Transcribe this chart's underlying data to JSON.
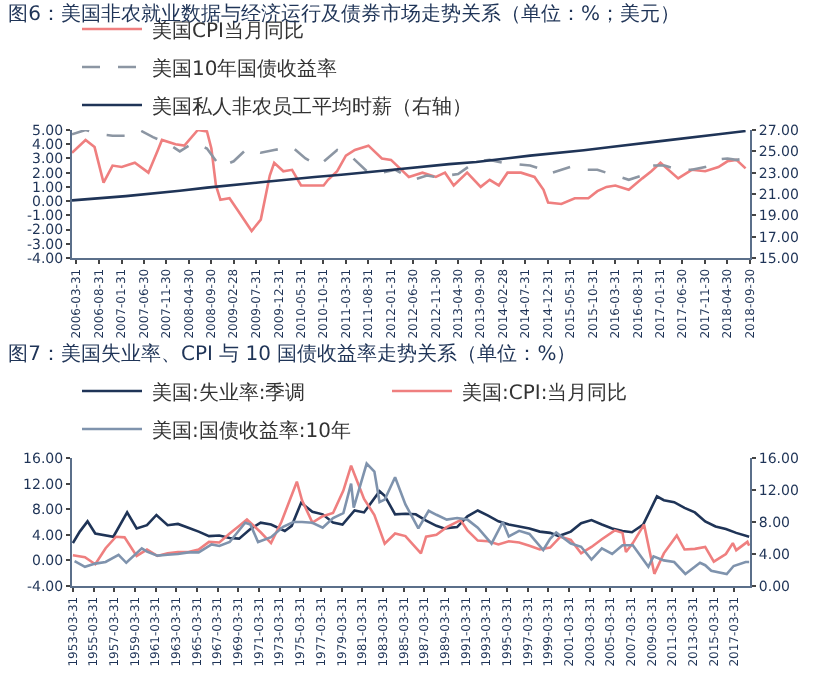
{
  "chart_data": [
    {
      "type": "line",
      "title": "图6：美国非农就业数据与经济运行及债券市场走势关系（单位：%；美元）",
      "legend": "top",
      "xlim": [
        "2006-03-01",
        "2018-10-01"
      ],
      "xticks": [
        "2006-03-31",
        "2006-08-31",
        "2007-01-31",
        "2007-06-30",
        "2007-11-30",
        "2008-04-30",
        "2008-09-30",
        "2009-02-28",
        "2009-07-31",
        "2009-12-31",
        "2010-05-31",
        "2010-10-31",
        "2011-03-31",
        "2011-08-31",
        "2012-01-31",
        "2012-06-30",
        "2012-11-30",
        "2013-04-30",
        "2013-09-30",
        "2014-02-28",
        "2014-07-31",
        "2014-12-31",
        "2015-05-31",
        "2015-10-31",
        "2016-03-31",
        "2016-08-31",
        "2017-01-31",
        "2017-06-30",
        "2017-11-30",
        "2018-04-30",
        "2018-09-30"
      ],
      "ylim": [
        -4,
        5
      ],
      "yticks": [
        {
          "value": -4,
          "label": "-4.00"
        },
        {
          "value": -3,
          "label": "-3.00"
        },
        {
          "value": -2,
          "label": "-2.00"
        },
        {
          "value": -1,
          "label": "-1.00"
        },
        {
          "value": 0,
          "label": "0.00"
        },
        {
          "value": 1,
          "label": "1.00"
        },
        {
          "value": 2,
          "label": "2.00"
        },
        {
          "value": 3,
          "label": "3.00"
        },
        {
          "value": 4,
          "label": "4.00"
        },
        {
          "value": 5,
          "label": "5.00"
        }
      ],
      "y2lim": [
        15,
        27
      ],
      "y2ticks": [
        {
          "value": 15,
          "label": "15.00"
        },
        {
          "value": 17,
          "label": "17.00"
        },
        {
          "value": 19,
          "label": "19.00"
        },
        {
          "value": 21,
          "label": "21.00"
        },
        {
          "value": 23,
          "label": "23.00"
        },
        {
          "value": 25,
          "label": "25.00"
        },
        {
          "value": 27,
          "label": "27.00"
        }
      ],
      "series": [
        {
          "name": "美国CPI当月同比",
          "color": "#ef7f7f",
          "line_style": "solid",
          "x": [
            "2006-03",
            "2006-06",
            "2006-08",
            "2006-10",
            "2006-12",
            "2007-02",
            "2007-05",
            "2007-08",
            "2007-10",
            "2007-11",
            "2008-02",
            "2008-04",
            "2008-07",
            "2008-09",
            "2008-10",
            "2008-11",
            "2008-12",
            "2009-02",
            "2009-04",
            "2009-07",
            "2009-09",
            "2009-11",
            "2009-12",
            "2010-02",
            "2010-04",
            "2010-06",
            "2010-09",
            "2010-11",
            "2010-12",
            "2011-02",
            "2011-04",
            "2011-06",
            "2011-09",
            "2011-12",
            "2012-02",
            "2012-04",
            "2012-06",
            "2012-09",
            "2012-12",
            "2013-02",
            "2013-04",
            "2013-07",
            "2013-10",
            "2013-12",
            "2014-02",
            "2014-04",
            "2014-07",
            "2014-10",
            "2014-12",
            "2015-01",
            "2015-04",
            "2015-07",
            "2015-10",
            "2015-12",
            "2016-02",
            "2016-04",
            "2016-07",
            "2016-10",
            "2016-12",
            "2017-02",
            "2017-06",
            "2017-09",
            "2017-12",
            "2018-03",
            "2018-05",
            "2018-07",
            "2018-09"
          ],
          "values": [
            3.4,
            4.3,
            3.8,
            1.3,
            2.5,
            2.4,
            2.7,
            2.0,
            3.5,
            4.3,
            4.0,
            3.9,
            5.0,
            4.9,
            3.7,
            1.1,
            0.1,
            0.2,
            -0.7,
            -2.1,
            -1.3,
            1.8,
            2.7,
            2.1,
            2.2,
            1.1,
            1.1,
            1.1,
            1.5,
            2.1,
            3.2,
            3.6,
            3.9,
            3.0,
            2.9,
            2.3,
            1.7,
            2.0,
            1.7,
            2.0,
            1.1,
            2.0,
            1.0,
            1.5,
            1.1,
            2.0,
            2.0,
            1.7,
            0.8,
            -0.1,
            -0.2,
            0.2,
            0.2,
            0.7,
            1.0,
            1.1,
            0.8,
            1.6,
            2.1,
            2.7,
            1.6,
            2.2,
            2.1,
            2.4,
            2.8,
            2.9,
            2.3
          ]
        },
        {
          "name": "美国10年国债收益率",
          "color": "#8c96a3",
          "line_style": "dashed",
          "x": [
            "2006-03",
            "2006-06",
            "2006-09",
            "2006-12",
            "2007-03",
            "2007-06",
            "2007-09",
            "2007-12",
            "2008-03",
            "2008-06",
            "2008-09",
            "2008-12",
            "2009-03",
            "2009-06",
            "2009-09",
            "2009-12",
            "2010-04",
            "2010-07",
            "2010-10",
            "2011-02",
            "2011-05",
            "2011-09",
            "2011-12",
            "2012-03",
            "2012-07",
            "2012-10",
            "2012-12",
            "2013-05",
            "2013-09",
            "2013-12",
            "2014-03",
            "2014-06",
            "2014-09",
            "2014-12",
            "2015-01",
            "2015-06",
            "2015-09",
            "2015-12",
            "2016-03",
            "2016-07",
            "2016-10",
            "2016-12",
            "2017-03",
            "2017-06",
            "2017-09",
            "2017-12",
            "2018-02",
            "2018-05",
            "2018-07",
            "2018-09"
          ],
          "values": [
            4.7,
            5.0,
            4.7,
            4.6,
            4.6,
            5.0,
            4.5,
            4.1,
            3.5,
            4.1,
            3.7,
            2.4,
            2.8,
            3.7,
            3.4,
            3.6,
            3.8,
            3.0,
            2.5,
            3.6,
            3.2,
            2.0,
            2.0,
            2.2,
            1.5,
            1.8,
            1.7,
            1.9,
            2.8,
            2.9,
            2.7,
            2.6,
            2.5,
            2.2,
            1.9,
            2.4,
            2.2,
            2.2,
            1.9,
            1.5,
            1.8,
            2.5,
            2.5,
            2.2,
            2.2,
            2.4,
            2.9,
            3.0,
            2.9,
            3.0
          ]
        },
        {
          "name": "美国私人非农员工平均时薪（右轴）",
          "color": "#1f3457",
          "line_style": "solid",
          "axis": "y2",
          "x": [
            "2006-03",
            "2007-03",
            "2008-03",
            "2008-09",
            "2009-09",
            "2010-09",
            "2011-03",
            "2012-03",
            "2013-03",
            "2013-09",
            "2014-09",
            "2015-09",
            "2016-03",
            "2017-03",
            "2018-03",
            "2018-09"
          ],
          "values": [
            20.4,
            20.8,
            21.3,
            21.6,
            22.1,
            22.6,
            22.8,
            23.3,
            23.8,
            24.0,
            24.6,
            25.1,
            25.4,
            26.0,
            26.6,
            26.9
          ]
        }
      ]
    },
    {
      "type": "line",
      "title": "图7：美国失业率、CPI 与 10 国债收益率走势关系（单位：%）",
      "legend": "top",
      "xlim": [
        "1953-03-01",
        "2018-10-01"
      ],
      "xticks": [
        "1953-03-31",
        "1955-03-31",
        "1957-03-31",
        "1959-03-31",
        "1961-03-31",
        "1963-03-31",
        "1965-03-31",
        "1967-03-31",
        "1969-03-31",
        "1971-03-31",
        "1973-03-31",
        "1975-03-31",
        "1977-03-31",
        "1979-03-31",
        "1981-03-31",
        "1983-03-31",
        "1985-03-31",
        "1987-03-31",
        "1989-03-31",
        "1991-03-31",
        "1993-03-31",
        "1995-03-31",
        "1997-03-31",
        "1999-03-31",
        "2001-03-31",
        "2003-03-31",
        "2005-03-31",
        "2007-03-31",
        "2009-03-31",
        "2011-03-31",
        "2013-03-31",
        "2015-03-31",
        "2017-03-31"
      ],
      "ylim": [
        -4,
        16
      ],
      "yticks": [
        {
          "value": -4,
          "label": "-4.00"
        },
        {
          "value": 0,
          "label": "0.00"
        },
        {
          "value": 4,
          "label": "4.00"
        },
        {
          "value": 8,
          "label": "8.00"
        },
        {
          "value": 12,
          "label": "12.00"
        },
        {
          "value": 16,
          "label": "16.00"
        }
      ],
      "y2lim": [
        0,
        16
      ],
      "y2ticks": [
        {
          "value": 0,
          "label": "0.00"
        },
        {
          "value": 4,
          "label": "4.00"
        },
        {
          "value": 8,
          "label": "8.00"
        },
        {
          "value": 12,
          "label": "12.00"
        },
        {
          "value": 16,
          "label": "16.00"
        }
      ],
      "series": [
        {
          "name": "美国:失业率:季调",
          "color": "#1f3457",
          "line_style": "solid",
          "x": [
            "1953-04",
            "1953-12",
            "1954-09",
            "1955-06",
            "1957-03",
            "1958-07",
            "1959-06",
            "1960-06",
            "1961-05",
            "1962-06",
            "1963-06",
            "1964-06",
            "1965-06",
            "1966-06",
            "1967-06",
            "1968-06",
            "1969-05",
            "1970-06",
            "1971-06",
            "1972-06",
            "1973-10",
            "1974-06",
            "1975-05",
            "1976-06",
            "1977-06",
            "1978-06",
            "1979-05",
            "1980-07",
            "1981-06",
            "1982-12",
            "1983-06",
            "1984-06",
            "1985-06",
            "1986-06",
            "1987-06",
            "1988-06",
            "1989-03",
            "1990-06",
            "1991-06",
            "1992-06",
            "1993-06",
            "1994-06",
            "1995-06",
            "1996-06",
            "1997-06",
            "1998-06",
            "1999-06",
            "2000-04",
            "2001-06",
            "2002-06",
            "2003-06",
            "2004-06",
            "2005-06",
            "2006-06",
            "2007-05",
            "2008-06",
            "2009-10",
            "2010-06",
            "2011-06",
            "2012-06",
            "2013-06",
            "2014-06",
            "2015-06",
            "2016-06",
            "2017-06",
            "2018-09"
          ],
          "values": [
            2.7,
            4.5,
            6.1,
            4.2,
            3.7,
            7.5,
            5.0,
            5.5,
            7.1,
            5.5,
            5.7,
            5.1,
            4.5,
            3.8,
            3.9,
            3.5,
            3.4,
            4.9,
            5.9,
            5.6,
            4.6,
            5.4,
            9.0,
            7.6,
            7.2,
            5.9,
            5.6,
            7.8,
            7.5,
            10.8,
            10.1,
            7.2,
            7.3,
            7.2,
            6.2,
            5.4,
            5.0,
            5.2,
            6.9,
            7.8,
            7.0,
            6.1,
            5.6,
            5.3,
            5.0,
            4.5,
            4.3,
            3.8,
            4.5,
            5.8,
            6.3,
            5.6,
            5.0,
            4.6,
            4.4,
            5.6,
            10.0,
            9.4,
            9.1,
            8.2,
            7.5,
            6.1,
            5.3,
            4.9,
            4.3,
            3.7
          ]
        },
        {
          "name": "美国:CPI:当月同比",
          "color": "#ef7f7f",
          "line_style": "solid",
          "x": [
            "1953-04",
            "1954-06",
            "1955-06",
            "1956-06",
            "1957-06",
            "1958-04",
            "1959-06",
            "1960-06",
            "1961-06",
            "1962-06",
            "1963-06",
            "1964-06",
            "1965-06",
            "1966-06",
            "1967-06",
            "1968-06",
            "1969-06",
            "1970-02",
            "1971-06",
            "1972-06",
            "1973-06",
            "1974-12",
            "1975-06",
            "1976-06",
            "1977-06",
            "1978-06",
            "1979-06",
            "1980-03",
            "1981-06",
            "1982-06",
            "1983-06",
            "1984-06",
            "1985-06",
            "1986-12",
            "1987-06",
            "1988-06",
            "1989-06",
            "1990-10",
            "1991-06",
            "1992-06",
            "1993-06",
            "1994-06",
            "1995-06",
            "1996-06",
            "1997-06",
            "1998-06",
            "1999-06",
            "2000-06",
            "2001-06",
            "2002-06",
            "2003-06",
            "2004-06",
            "2005-09",
            "2006-06",
            "2006-10",
            "2007-06",
            "2008-07",
            "2009-07",
            "2010-06",
            "2011-09",
            "2012-06",
            "2013-06",
            "2014-06",
            "2015-04",
            "2016-06",
            "2017-02",
            "2017-06",
            "2018-07",
            "2018-09"
          ],
          "values": [
            0.8,
            0.5,
            -0.6,
            1.9,
            3.7,
            3.6,
            0.7,
            1.7,
            0.7,
            1.1,
            1.3,
            1.3,
            1.7,
            2.9,
            2.8,
            4.2,
            5.5,
            6.4,
            4.4,
            2.7,
            6.0,
            12.3,
            9.4,
            5.9,
            6.9,
            7.4,
            10.9,
            14.8,
            9.6,
            7.1,
            2.6,
            4.2,
            3.8,
            1.1,
            3.7,
            4.0,
            5.2,
            6.3,
            4.7,
            3.1,
            3.0,
            2.5,
            3.0,
            2.8,
            2.3,
            1.7,
            2.0,
            3.7,
            3.2,
            1.1,
            2.1,
            3.3,
            4.7,
            4.3,
            1.3,
            2.7,
            5.6,
            -2.1,
            1.1,
            3.9,
            1.7,
            1.8,
            2.1,
            -0.2,
            1.0,
            2.7,
            1.6,
            2.9,
            2.3
          ]
        },
        {
          "name": "美国:国债收益率:10年",
          "color": "#7f93ad",
          "line_style": "solid",
          "axis": "y2",
          "x": [
            "1953-06",
            "1954-06",
            "1955-06",
            "1956-06",
            "1957-09",
            "1958-06",
            "1959-12",
            "1960-06",
            "1961-06",
            "1962-06",
            "1963-06",
            "1964-06",
            "1965-06",
            "1966-09",
            "1967-06",
            "1968-06",
            "1969-12",
            "1970-06",
            "1971-03",
            "1972-06",
            "1973-08",
            "1974-08",
            "1975-06",
            "1976-06",
            "1977-06",
            "1978-06",
            "1979-06",
            "1980-03",
            "1980-06",
            "1981-09",
            "1982-06",
            "1982-12",
            "1983-06",
            "1984-06",
            "1985-06",
            "1986-09",
            "1987-09",
            "1988-06",
            "1989-06",
            "1990-06",
            "1991-06",
            "1992-06",
            "1993-10",
            "1994-11",
            "1995-06",
            "1996-06",
            "1997-06",
            "1998-10",
            "1999-06",
            "2000-01",
            "2001-06",
            "2002-06",
            "2003-06",
            "2004-06",
            "2005-06",
            "2006-06",
            "2007-06",
            "2008-12",
            "2009-06",
            "2010-06",
            "2011-06",
            "2012-07",
            "2013-12",
            "2014-06",
            "2015-01",
            "2016-07",
            "2017-03",
            "2018-05",
            "2018-09"
          ],
          "values": [
            3.1,
            2.4,
            2.8,
            3.0,
            3.9,
            2.9,
            4.7,
            4.3,
            3.8,
            3.9,
            4.0,
            4.2,
            4.2,
            5.2,
            5.0,
            5.5,
            7.9,
            7.7,
            5.5,
            6.1,
            7.4,
            8.0,
            8.0,
            7.9,
            7.3,
            8.5,
            9.1,
            12.8,
            9.8,
            15.3,
            14.3,
            10.5,
            10.8,
            13.6,
            10.2,
            7.2,
            9.4,
            8.9,
            8.3,
            8.5,
            8.3,
            7.3,
            5.3,
            8.0,
            6.2,
            6.9,
            6.5,
            4.5,
            5.9,
            6.7,
            5.3,
            4.9,
            3.3,
            4.7,
            4.0,
            5.1,
            5.1,
            2.4,
            3.7,
            3.2,
            3.0,
            1.5,
            2.9,
            2.6,
            1.9,
            1.5,
            2.5,
            3.0,
            3.0
          ]
        }
      ]
    }
  ]
}
